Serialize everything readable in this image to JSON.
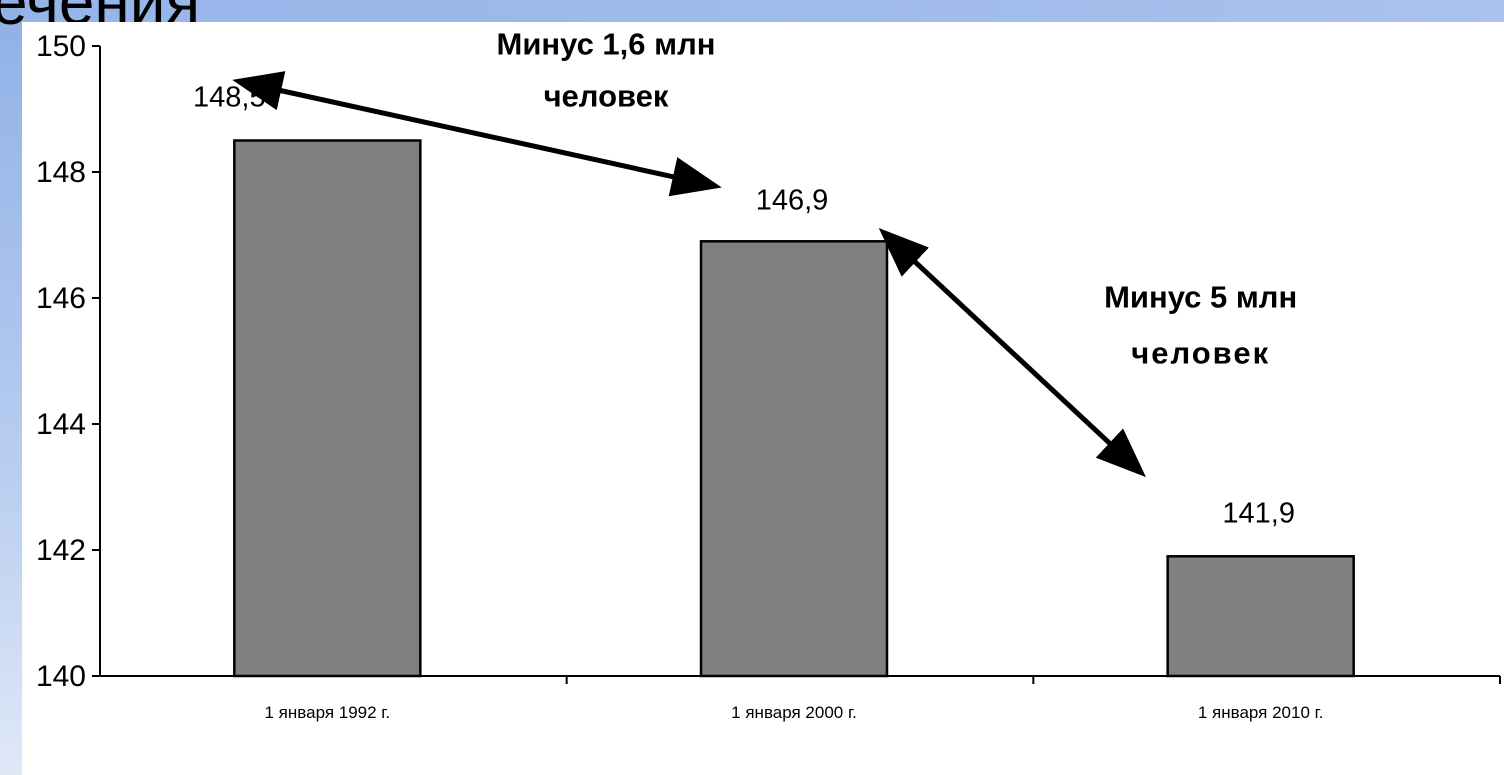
{
  "slide": {
    "title_fragment": "ечения"
  },
  "chart_data": {
    "type": "bar",
    "categories": [
      "1 января 1992 г.",
      "1 января 2000 г.",
      "1 января 2010 г."
    ],
    "values": [
      148.5,
      146.9,
      141.9
    ],
    "value_labels": [
      "148,5",
      "146,9",
      "141,9"
    ],
    "ylim": [
      140,
      150
    ],
    "yticks": [
      140,
      142,
      144,
      146,
      148,
      150
    ],
    "ytick_labels": [
      "140",
      "142",
      "144",
      "146",
      "148",
      "150"
    ],
    "title": "",
    "xlabel": "",
    "ylabel": "",
    "grid": false,
    "legend": "none",
    "bar_color": "#808080",
    "annotations": [
      {
        "line1": "Минус 1,6 млн",
        "line2": "человек",
        "from_index": 0,
        "to_index": 1
      },
      {
        "line1": "Минус 5 млн",
        "line2": "человек",
        "from_index": 1,
        "to_index": 2
      }
    ]
  }
}
